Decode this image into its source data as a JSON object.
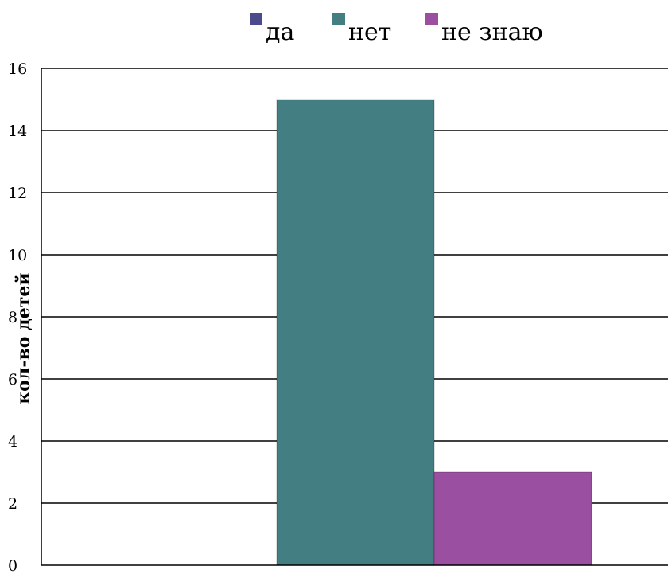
{
  "chart_data": {
    "type": "bar",
    "title": "",
    "xlabel": "",
    "ylabel": "кол-во детей",
    "ylim": [
      0,
      16
    ],
    "yticks": [
      0,
      2,
      4,
      6,
      8,
      10,
      12,
      14,
      16
    ],
    "ytick_labels": [
      "0",
      "2",
      "4",
      "6",
      "8",
      "10",
      "12",
      "14",
      "16"
    ],
    "grid": true,
    "legend_position": "top",
    "categories": [
      ""
    ],
    "series": [
      {
        "name": "да",
        "values": [
          0
        ],
        "color": "#4b4a8c"
      },
      {
        "name": "нет",
        "values": [
          15
        ],
        "color": "#437e82"
      },
      {
        "name": "не знаю",
        "values": [
          3
        ],
        "color": "#9b4fa0"
      }
    ]
  }
}
